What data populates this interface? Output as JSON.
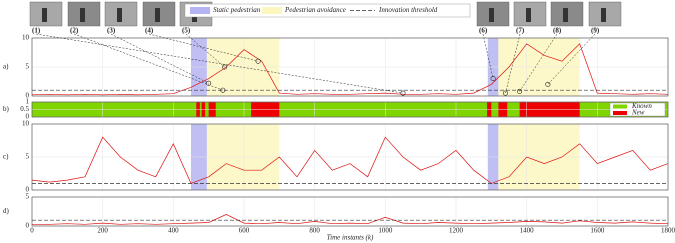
{
  "legend": {
    "items": [
      {
        "name": "Static pedestrian",
        "color": "#b4b4f2",
        "spans": [
          [
            450,
            495
          ],
          [
            1290,
            1320
          ]
        ]
      },
      {
        "name": "Pedestrian avoidance",
        "color": "#fbf7c0",
        "spans": [
          [
            495,
            700
          ],
          [
            1320,
            1550
          ]
        ]
      },
      {
        "name": "Innovation threshold",
        "color": "#333333"
      }
    ]
  },
  "chart_data": [
    {
      "type": "line",
      "panel_label": "a)",
      "shaded": true,
      "color": "#e01010",
      "xlim": [
        0,
        1800
      ],
      "ylim": [
        0,
        10
      ],
      "yticks": [
        0,
        5,
        10
      ],
      "threshold": 1,
      "x": [
        0,
        50,
        100,
        150,
        200,
        250,
        300,
        350,
        400,
        450,
        500,
        550,
        600,
        650,
        700,
        750,
        800,
        850,
        900,
        950,
        1000,
        1050,
        1100,
        1150,
        1200,
        1250,
        1300,
        1350,
        1400,
        1450,
        1500,
        1550,
        1600,
        1650,
        1700,
        1750,
        1800
      ],
      "values": [
        0.2,
        0.3,
        0.2,
        0.3,
        0.2,
        0.3,
        0.2,
        0.3,
        0.4,
        1.5,
        3,
        5,
        8,
        6,
        0.5,
        0.3,
        0.4,
        0.3,
        0.3,
        0.4,
        0.5,
        0.3,
        0.3,
        0.4,
        0.3,
        0.5,
        2,
        5,
        9,
        7,
        6,
        9,
        0.5,
        0.4,
        0.3,
        0.4,
        0.3
      ],
      "annotations": [
        {
          "label": "(1)",
          "x": 1050,
          "y": 0.5
        },
        {
          "label": "(2)",
          "x": 540,
          "y": 1
        },
        {
          "label": "(3)",
          "x": 500,
          "y": 2.2
        },
        {
          "label": "(4)",
          "x": 640,
          "y": 6
        },
        {
          "label": "(5)",
          "x": 545,
          "y": 5
        },
        {
          "label": "(6)",
          "x": 1305,
          "y": 3
        },
        {
          "label": "(7)",
          "x": 1340,
          "y": 0.5
        },
        {
          "label": "(8)",
          "x": 1380,
          "y": 0.8
        },
        {
          "label": "(9)",
          "x": 1460,
          "y": 2
        }
      ]
    },
    {
      "type": "timeline",
      "panel_label": "b)",
      "xlim": [
        0,
        1800
      ],
      "ylim": [
        0,
        1
      ],
      "yticks": [
        0,
        0.5,
        1
      ],
      "series": [
        {
          "name": "Known",
          "color": "#80d400",
          "spans": [
            [
              0,
              1800
            ]
          ]
        },
        {
          "name": "New",
          "color": "#ee0000",
          "spans": [
            [
              465,
              475
            ],
            [
              480,
              490
            ],
            [
              500,
              520
            ],
            [
              620,
              700
            ],
            [
              1288,
              1300
            ],
            [
              1320,
              1345
            ],
            [
              1380,
              1550
            ]
          ]
        }
      ]
    },
    {
      "type": "line",
      "panel_label": "c)",
      "shaded": true,
      "color": "#e01010",
      "xlim": [
        0,
        1800
      ],
      "ylim": [
        0,
        10
      ],
      "yticks": [
        0,
        5,
        10
      ],
      "threshold": 1,
      "x": [
        0,
        50,
        100,
        150,
        200,
        250,
        300,
        350,
        400,
        450,
        500,
        550,
        600,
        650,
        700,
        750,
        800,
        850,
        900,
        950,
        1000,
        1050,
        1100,
        1150,
        1200,
        1250,
        1300,
        1350,
        1400,
        1450,
        1500,
        1550,
        1600,
        1650,
        1700,
        1750,
        1800
      ],
      "values": [
        1.5,
        1.2,
        1.5,
        2,
        8,
        5,
        3,
        2,
        7,
        1,
        2,
        4,
        3,
        3,
        5,
        2,
        6,
        3,
        4,
        2,
        8,
        5,
        3,
        4,
        6,
        3,
        1,
        2,
        5,
        4,
        5,
        7,
        4,
        5,
        6,
        3,
        4
      ]
    },
    {
      "type": "line",
      "panel_label": "d)",
      "color": "#e01010",
      "xlim": [
        0,
        1800
      ],
      "ylim": [
        0,
        5
      ],
      "yticks": [
        0,
        5
      ],
      "threshold": 1,
      "xlabel": "Time instants (k)",
      "xticks": [
        0,
        200,
        400,
        600,
        800,
        1000,
        1200,
        1400,
        1600,
        1800
      ],
      "x": [
        0,
        50,
        100,
        150,
        200,
        250,
        300,
        350,
        400,
        450,
        500,
        550,
        600,
        650,
        700,
        750,
        800,
        850,
        900,
        950,
        1000,
        1050,
        1100,
        1150,
        1200,
        1250,
        1300,
        1350,
        1400,
        1450,
        1500,
        1550,
        1600,
        1650,
        1700,
        1750,
        1800
      ],
      "values": [
        0.3,
        0.3,
        0.4,
        0.3,
        0.5,
        0.3,
        0.4,
        0.3,
        0.4,
        0.5,
        0.6,
        2,
        0.5,
        0.4,
        0.6,
        0.4,
        0.8,
        0.4,
        0.5,
        0.4,
        1.5,
        0.5,
        0.4,
        0.6,
        0.5,
        0.4,
        0.5,
        0.6,
        0.8,
        0.7,
        0.5,
        0.9,
        0.6,
        0.5,
        0.7,
        0.5,
        0.4
      ]
    }
  ]
}
